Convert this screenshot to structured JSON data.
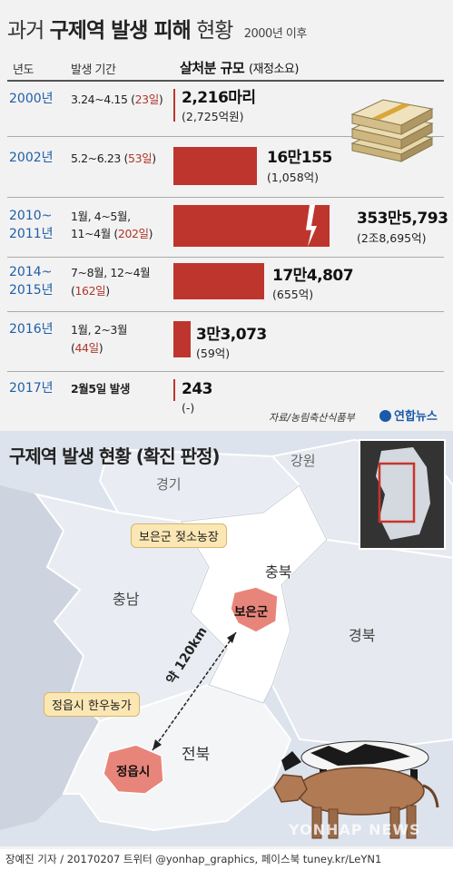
{
  "title": {
    "part1": "과거",
    "bold": "구제역 발생 피해",
    "part2": "현황",
    "sub": "2000년 이후"
  },
  "table_header": {
    "year": "년도",
    "period": "발생 기간",
    "amount": "살처분 규모",
    "amount_unit": "(재정소요)"
  },
  "rows": [
    {
      "year1": "2000년",
      "year2": "",
      "period1": "3.24~4.15 (",
      "days1": "23일",
      "period1_end": ")",
      "period2": "",
      "days2": "",
      "period2_end": "",
      "value_text": "2,216마리",
      "cost_text": "(2,725억원)"
    },
    {
      "year1": "2002년",
      "year2": "",
      "period1": "5.2~6.23 (",
      "days1": "53일",
      "period1_end": ")",
      "period2": "",
      "days2": "",
      "period2_end": "",
      "value_text": "16만155",
      "cost_text": "(1,058억)"
    },
    {
      "year1": "2010~",
      "year2": "2011년",
      "period1": "1월, 4~5월,",
      "days1": "",
      "period1_end": "",
      "period2": "11~4월 (",
      "days2": "202일",
      "period2_end": ")",
      "value_text": "353만5,793",
      "cost_text": "(2조8,695억)"
    },
    {
      "year1": "2014~",
      "year2": "2015년",
      "period1": "7~8월, 12~4월",
      "days1": "",
      "period1_end": "",
      "period2": "(",
      "days2": "162일",
      "period2_end": ")",
      "value_text": "17만4,807",
      "cost_text": "(655억)"
    },
    {
      "year1": "2016년",
      "year2": "",
      "period1": "1월, 2~3월",
      "days1": "",
      "period1_end": "",
      "period2": "(",
      "days2": "44일",
      "period2_end": ")",
      "value_text": "3만3,073",
      "cost_text": "(59억)"
    },
    {
      "year1": "2017년",
      "year2": "",
      "period1": "2월5일 발생",
      "days1": "",
      "period1_end": "",
      "period2": "",
      "days2": "",
      "period2_end": "",
      "value_text": "243",
      "cost_text": "(-)"
    }
  ],
  "chart_data": {
    "type": "bar",
    "title": "과거 구제역 발생 피해 현황",
    "subtitle": "2000년 이후",
    "categories": [
      "2000년",
      "2002년",
      "2010~2011년",
      "2014~2015년",
      "2016년",
      "2017년"
    ],
    "series": [
      {
        "name": "살처분 규모",
        "values": [
          2216,
          160155,
          3535793,
          174807,
          33073,
          243
        ]
      }
    ],
    "cost_100m_won": [
      2725,
      1058,
      28695,
      655,
      59,
      null
    ],
    "days": [
      23,
      53,
      202,
      162,
      44,
      null
    ],
    "note": "2010~2011 bar is truncated (broken axis)"
  },
  "source": "자료/농림축산식품부",
  "brand": "연합뉴스",
  "map": {
    "title": "구제역 발생 현황 (확진 판정)",
    "regions": {
      "gangwon": "강원",
      "gyeonggi": "경기",
      "chungbuk": "충북",
      "chungnam": "충남",
      "gyeongbuk": "경북",
      "jeonbuk": "전북"
    },
    "boeun": "보은군",
    "jeongeup": "정읍시",
    "callout_boeun": "보은군 젖소농장",
    "callout_jeongeup": "정읍시 한우농가",
    "distance": "약 120km"
  },
  "watermark": "YONHAP NEWS",
  "footer": "장예진 기자 / 20170207 트위터 @yonhap_graphics, 페이스북 tuney.kr/LeYN1",
  "colors": {
    "bar": "#be352d",
    "year_text": "#1f5ea8",
    "highlight_region": "#e8857a",
    "callout_bg": "#fbe7b4"
  }
}
